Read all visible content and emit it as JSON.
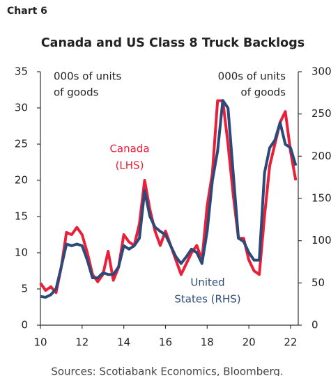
{
  "chart_data": {
    "type": "line",
    "kicker": "Chart 6",
    "title": "Canada and US Class 8 Truck Backlogs",
    "y_label": [
      "000s of units",
      "of goods"
    ],
    "y2_label": [
      "000s of units",
      "of goods"
    ],
    "source": "Sources: Scotiabank Economics, Bloomberg.",
    "x": [
      2010,
      2010.25,
      2010.5,
      2010.75,
      2011,
      2011.25,
      2011.5,
      2011.75,
      2012,
      2012.25,
      2012.5,
      2012.75,
      2013,
      2013.25,
      2013.5,
      2013.75,
      2014,
      2014.25,
      2014.5,
      2014.75,
      2015,
      2015.25,
      2015.5,
      2015.75,
      2016,
      2016.25,
      2016.5,
      2016.75,
      2017,
      2017.25,
      2017.5,
      2017.75,
      2018,
      2018.25,
      2018.5,
      2018.75,
      2019,
      2019.25,
      2019.5,
      2019.75,
      2020,
      2020.25,
      2020.5,
      2020.75,
      2021,
      2021.25,
      2021.5,
      2021.75,
      2022,
      2022.25
    ],
    "series": [
      {
        "label": [
          "Canada",
          "(LHS)"
        ],
        "color": "#e8203a",
        "axis": "y",
        "values": [
          5.8,
          4.8,
          5.3,
          4.5,
          8,
          12.8,
          12.5,
          13.5,
          12.5,
          10,
          7,
          6,
          7,
          10.2,
          6.2,
          8,
          12.5,
          11.5,
          11,
          14,
          20,
          16,
          13,
          11,
          13,
          11,
          9,
          7,
          8.5,
          10,
          11,
          9,
          16.5,
          21,
          31,
          31,
          25,
          18,
          12,
          12,
          9,
          7.5,
          7,
          15,
          22,
          25,
          28,
          29.5,
          24,
          20
        ]
      },
      {
        "label": [
          "United",
          "States (RHS)"
        ],
        "color": "#2b4a7a",
        "axis": "y2",
        "values": [
          34,
          33,
          36,
          43,
          69,
          96,
          94,
          96,
          94,
          77,
          56,
          56,
          62,
          60,
          60,
          69,
          94,
          90,
          94,
          103,
          159,
          129,
          116,
          111,
          107,
          94,
          81,
          73,
          81,
          90,
          86,
          73,
          111,
          171,
          206,
          266,
          257,
          180,
          103,
          99,
          86,
          77,
          77,
          180,
          210,
          219,
          240,
          214,
          210,
          189
        ]
      }
    ],
    "xlim": [
      2010,
      2022.37
    ],
    "xticks": [
      {
        "value": 2010,
        "label": "10"
      },
      {
        "value": 2012,
        "label": "12"
      },
      {
        "value": 2014,
        "label": "14"
      },
      {
        "value": 2016,
        "label": "16"
      },
      {
        "value": 2018,
        "label": "18"
      },
      {
        "value": 2020,
        "label": "20"
      },
      {
        "value": 2022,
        "label": "22"
      }
    ],
    "ylim": [
      0,
      35
    ],
    "yticks": [
      0,
      5,
      10,
      15,
      20,
      25,
      30,
      35
    ],
    "y2lim": [
      0,
      300
    ],
    "y2ticks": [
      0,
      50,
      100,
      150,
      200,
      250,
      300
    ],
    "grid": false
  }
}
